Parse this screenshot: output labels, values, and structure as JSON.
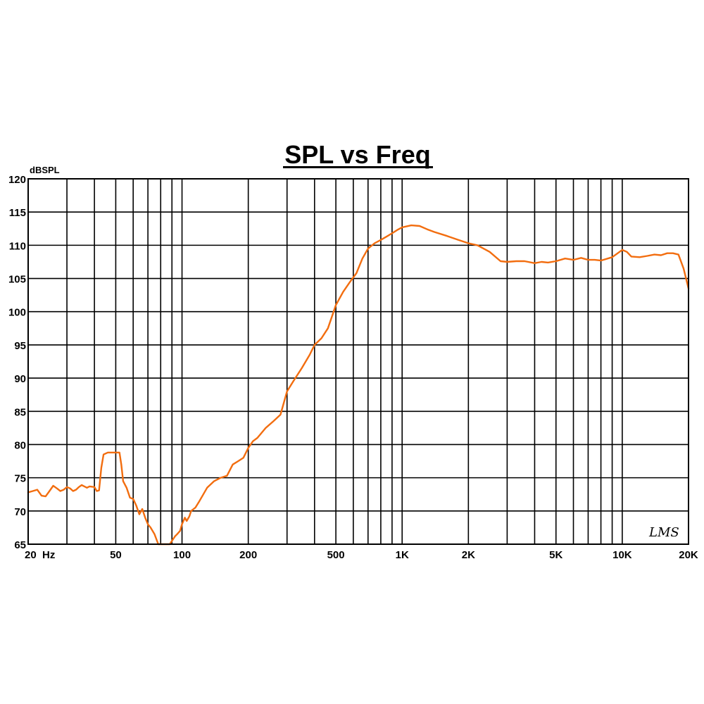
{
  "chart_data": {
    "type": "line",
    "title": "SPL vs Freq",
    "xlabel": "Hz",
    "ylabel": "dBSPL",
    "xscale": "log",
    "xlim": [
      20,
      20000
    ],
    "ylim": [
      65,
      120
    ],
    "grid": true,
    "legend": "none",
    "y_ticks": [
      65,
      70,
      75,
      80,
      85,
      90,
      95,
      100,
      105,
      110,
      115,
      120
    ],
    "x_tick_labels": [
      {
        "value": 20,
        "label": "20  Hz"
      },
      {
        "value": 50,
        "label": "50"
      },
      {
        "value": 100,
        "label": "100"
      },
      {
        "value": 200,
        "label": "200"
      },
      {
        "value": 500,
        "label": "500"
      },
      {
        "value": 1000,
        "label": "1K"
      },
      {
        "value": 2000,
        "label": "2K"
      },
      {
        "value": 5000,
        "label": "5K"
      },
      {
        "value": 10000,
        "label": "10K"
      },
      {
        "value": 20000,
        "label": "20K"
      }
    ],
    "x_gridlines": [
      20,
      30,
      40,
      50,
      60,
      70,
      80,
      90,
      100,
      200,
      300,
      400,
      500,
      600,
      700,
      800,
      900,
      1000,
      2000,
      3000,
      4000,
      5000,
      6000,
      7000,
      8000,
      9000,
      10000,
      20000
    ],
    "annotation": "LMS",
    "series": [
      {
        "name": "SPL",
        "color": "#f26d0f",
        "x": [
          20,
          21,
          22,
          23,
          24,
          25,
          26,
          27,
          28,
          29,
          30,
          31,
          32,
          33,
          34,
          35,
          36,
          37,
          38,
          40,
          41,
          42,
          43,
          44,
          46,
          48,
          50,
          52,
          53,
          54,
          56,
          58,
          60,
          62,
          64,
          66,
          68,
          70,
          72,
          75,
          78,
          80,
          83,
          85,
          88,
          90,
          93,
          95,
          98,
          100,
          103,
          105,
          108,
          110,
          115,
          120,
          125,
          130,
          140,
          150,
          160,
          170,
          180,
          190,
          200,
          210,
          220,
          240,
          260,
          280,
          300,
          320,
          350,
          380,
          400,
          430,
          460,
          500,
          540,
          580,
          620,
          660,
          700,
          750,
          800,
          850,
          900,
          950,
          1000,
          1100,
          1200,
          1300,
          1400,
          1600,
          1800,
          2000,
          2200,
          2500,
          2800,
          3000,
          3300,
          3600,
          4000,
          4300,
          4600,
          5000,
          5500,
          6000,
          6500,
          7000,
          7500,
          8000,
          9000,
          10000,
          10500,
          11000,
          12000,
          13000,
          14000,
          15000,
          16000,
          17000,
          18000,
          19000,
          20000
        ],
        "values": [
          72.8,
          73.0,
          73.2,
          72.3,
          72.2,
          73.0,
          73.8,
          73.4,
          73.0,
          73.2,
          73.6,
          73.4,
          73.0,
          73.2,
          73.6,
          73.9,
          73.7,
          73.5,
          73.7,
          73.6,
          73.0,
          73.1,
          76.5,
          78.5,
          78.8,
          78.8,
          78.8,
          78.8,
          77.0,
          74.5,
          73.5,
          72.0,
          71.8,
          70.8,
          69.5,
          70.3,
          69.0,
          68.0,
          67.5,
          66.5,
          65.0,
          65.0,
          65.0,
          65.0,
          65.0,
          65.5,
          66.2,
          66.5,
          67.0,
          68.0,
          69.0,
          68.5,
          69.2,
          70.0,
          70.5,
          71.5,
          72.5,
          73.5,
          74.5,
          75.0,
          75.3,
          77.0,
          77.5,
          78.0,
          79.5,
          80.5,
          81.0,
          82.5,
          83.5,
          84.5,
          88.0,
          89.5,
          91.5,
          93.5,
          95.0,
          96.0,
          97.5,
          101.0,
          103.0,
          104.5,
          105.8,
          108.0,
          109.5,
          110.3,
          110.8,
          111.3,
          111.8,
          112.3,
          112.7,
          113.0,
          112.9,
          112.4,
          112.0,
          111.4,
          110.8,
          110.3,
          110.0,
          109.0,
          107.6,
          107.5,
          107.6,
          107.6,
          107.3,
          107.5,
          107.4,
          107.6,
          108.0,
          107.8,
          108.1,
          107.8,
          107.8,
          107.7,
          108.2,
          109.3,
          109.0,
          108.3,
          108.2,
          108.4,
          108.6,
          108.5,
          108.8,
          108.8,
          108.6,
          106.5,
          103.5
        ]
      }
    ]
  },
  "labels": {
    "title": "SPL vs Freq",
    "y_unit": "dBSPL",
    "signature": "LMS"
  }
}
